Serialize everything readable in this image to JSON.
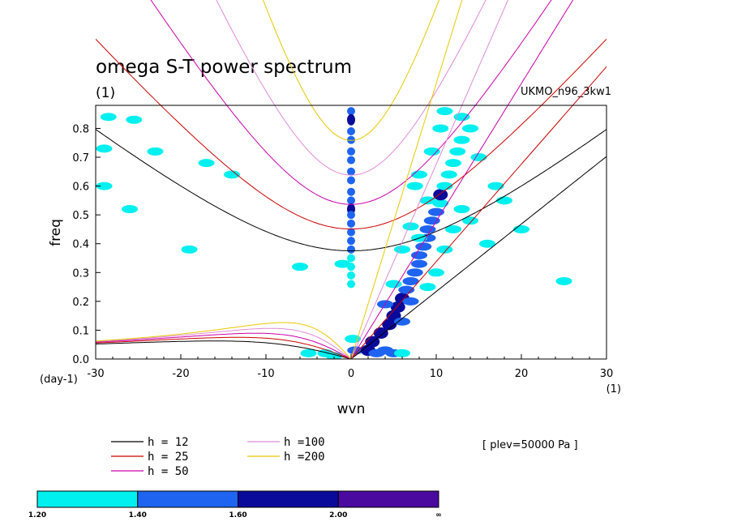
{
  "chart_data": {
    "type": "line",
    "title": "omega S-T power spectrum",
    "subtitle": "(1)",
    "run_label": "UKMO_n96_3kw1",
    "xlabel": "wvn",
    "ylabel": "freq",
    "x_unit_label": "(1)",
    "y_unit_label": "(day-1)",
    "xlim": [
      -30,
      30
    ],
    "ylim": [
      0,
      0.88
    ],
    "x_ticks": [
      -30,
      -20,
      -10,
      0,
      10,
      20,
      30
    ],
    "x_tick_labels": [
      "-30",
      "-20",
      "-10",
      "0",
      "10",
      "20",
      "30"
    ],
    "y_ticks": [
      0,
      0.1,
      0.2,
      0.3,
      0.4,
      0.5,
      0.6,
      0.7,
      0.8
    ],
    "y_tick_labels": [
      "0.0",
      "0.1",
      "0.2",
      "0.3",
      "0.4",
      "0.5",
      "0.6",
      "0.7",
      "0.8"
    ],
    "series": [
      {
        "name": "h = 12",
        "h": 12,
        "color": "#000000"
      },
      {
        "name": "h = 25",
        "h": 25,
        "color": "#cc0000"
      },
      {
        "name": "h = 50",
        "h": 50,
        "color": "#cc00aa"
      },
      {
        "name": "h =100",
        "h": 100,
        "color": "#e08ad8"
      },
      {
        "name": "h =200",
        "h": 200,
        "color": "#e8c800"
      }
    ],
    "annotation": "[ plev=50000 Pa ]",
    "colorbar": {
      "levels": [
        "1.20",
        "1.40",
        "1.60",
        "2.00",
        "∞"
      ],
      "colors": [
        "#00f0f0",
        "#1e64f0",
        "#0a0a9a",
        "#4a0aa0"
      ]
    },
    "power_blobs": [
      {
        "k": 0,
        "f": 0.86,
        "lvl": 1
      },
      {
        "k": 0,
        "f": 0.83,
        "lvl": 2
      },
      {
        "k": 0,
        "f": 0.79,
        "lvl": 1
      },
      {
        "k": 0,
        "f": 0.76,
        "lvl": 1
      },
      {
        "k": 0,
        "f": 0.72,
        "lvl": 1
      },
      {
        "k": 0,
        "f": 0.69,
        "lvl": 1
      },
      {
        "k": 0,
        "f": 0.65,
        "lvl": 1
      },
      {
        "k": 0,
        "f": 0.62,
        "lvl": 1
      },
      {
        "k": 0,
        "f": 0.58,
        "lvl": 1
      },
      {
        "k": 0,
        "f": 0.55,
        "lvl": 1
      },
      {
        "k": 0,
        "f": 0.52,
        "lvl": 2
      },
      {
        "k": 0,
        "f": 0.5,
        "lvl": 1
      },
      {
        "k": 0,
        "f": 0.47,
        "lvl": 1
      },
      {
        "k": 0,
        "f": 0.44,
        "lvl": 1
      },
      {
        "k": 0,
        "f": 0.41,
        "lvl": 1
      },
      {
        "k": 0,
        "f": 0.38,
        "lvl": 1
      },
      {
        "k": 0,
        "f": 0.35,
        "lvl": 0
      },
      {
        "k": 0,
        "f": 0.32,
        "lvl": 0
      },
      {
        "k": 0,
        "f": 0.29,
        "lvl": 0
      },
      {
        "k": 0,
        "f": 0.26,
        "lvl": 0
      },
      {
        "k": 0.2,
        "f": 0.07,
        "lvl": 0
      },
      {
        "k": 0.5,
        "f": 0.03,
        "lvl": 1
      },
      {
        "k": -3,
        "f": 0.02,
        "lvl": 0
      },
      {
        "k": -5,
        "f": 0.02,
        "lvl": 0
      },
      {
        "k": -2,
        "f": 0.01,
        "lvl": 0
      },
      {
        "k": 2,
        "f": 0.03,
        "lvl": 2
      },
      {
        "k": 3,
        "f": 0.02,
        "lvl": 1
      },
      {
        "k": 4,
        "f": 0.03,
        "lvl": 1
      },
      {
        "k": 5,
        "f": 0.02,
        "lvl": 1
      },
      {
        "k": 6,
        "f": 0.02,
        "lvl": 0
      },
      {
        "k": 2.5,
        "f": 0.06,
        "lvl": 2
      },
      {
        "k": 3.5,
        "f": 0.09,
        "lvl": 2
      },
      {
        "k": 4.5,
        "f": 0.12,
        "lvl": 2
      },
      {
        "k": 5,
        "f": 0.15,
        "lvl": 2
      },
      {
        "k": 5.5,
        "f": 0.18,
        "lvl": 2
      },
      {
        "k": 6,
        "f": 0.21,
        "lvl": 2
      },
      {
        "k": 6.5,
        "f": 0.24,
        "lvl": 1
      },
      {
        "k": 7,
        "f": 0.27,
        "lvl": 1
      },
      {
        "k": 7.5,
        "f": 0.3,
        "lvl": 1
      },
      {
        "k": 8,
        "f": 0.33,
        "lvl": 1
      },
      {
        "k": 8,
        "f": 0.36,
        "lvl": 1
      },
      {
        "k": 8.5,
        "f": 0.39,
        "lvl": 1
      },
      {
        "k": 9,
        "f": 0.42,
        "lvl": 1
      },
      {
        "k": 9,
        "f": 0.45,
        "lvl": 1
      },
      {
        "k": 9.5,
        "f": 0.48,
        "lvl": 1
      },
      {
        "k": 10,
        "f": 0.51,
        "lvl": 1
      },
      {
        "k": 10.5,
        "f": 0.54,
        "lvl": 0
      },
      {
        "k": 10.5,
        "f": 0.57,
        "lvl": 2
      },
      {
        "k": 11,
        "f": 0.6,
        "lvl": 0
      },
      {
        "k": 11.5,
        "f": 0.64,
        "lvl": 0
      },
      {
        "k": 12,
        "f": 0.68,
        "lvl": 0
      },
      {
        "k": 12.5,
        "f": 0.72,
        "lvl": 0
      },
      {
        "k": 13,
        "f": 0.76,
        "lvl": 0
      },
      {
        "k": 14,
        "f": 0.8,
        "lvl": 0
      },
      {
        "k": 13,
        "f": 0.84,
        "lvl": 0
      },
      {
        "k": 11,
        "f": 0.86,
        "lvl": 0
      },
      {
        "k": 6,
        "f": 0.13,
        "lvl": 1
      },
      {
        "k": 7,
        "f": 0.2,
        "lvl": 1
      },
      {
        "k": 9,
        "f": 0.25,
        "lvl": 0
      },
      {
        "k": 10,
        "f": 0.3,
        "lvl": 0
      },
      {
        "k": 11,
        "f": 0.38,
        "lvl": 0
      },
      {
        "k": 12,
        "f": 0.45,
        "lvl": 0
      },
      {
        "k": 8,
        "f": 0.42,
        "lvl": 0
      },
      {
        "k": 9,
        "f": 0.55,
        "lvl": 0
      },
      {
        "k": 6,
        "f": 0.38,
        "lvl": 0
      },
      {
        "k": 7,
        "f": 0.46,
        "lvl": 0
      },
      {
        "k": 7.5,
        "f": 0.6,
        "lvl": 0
      },
      {
        "k": 8,
        "f": 0.64,
        "lvl": 0
      },
      {
        "k": 9.5,
        "f": 0.72,
        "lvl": 0
      },
      {
        "k": 10.5,
        "f": 0.8,
        "lvl": 0
      },
      {
        "k": 15,
        "f": 0.7,
        "lvl": 0
      },
      {
        "k": 17,
        "f": 0.6,
        "lvl": 0
      },
      {
        "k": 18,
        "f": 0.55,
        "lvl": 0
      },
      {
        "k": 20,
        "f": 0.45,
        "lvl": 0
      },
      {
        "k": 14,
        "f": 0.48,
        "lvl": 0
      },
      {
        "k": 13,
        "f": 0.52,
        "lvl": 0
      },
      {
        "k": 16,
        "f": 0.4,
        "lvl": 0
      },
      {
        "k": 25,
        "f": 0.27,
        "lvl": 0
      },
      {
        "k": -29,
        "f": 0.73,
        "lvl": 0
      },
      {
        "k": -28.5,
        "f": 0.84,
        "lvl": 0
      },
      {
        "k": -25.5,
        "f": 0.83,
        "lvl": 0
      },
      {
        "k": -23,
        "f": 0.72,
        "lvl": 0
      },
      {
        "k": -29,
        "f": 0.6,
        "lvl": 0
      },
      {
        "k": -26,
        "f": 0.52,
        "lvl": 0
      },
      {
        "k": -17,
        "f": 0.68,
        "lvl": 0
      },
      {
        "k": -14,
        "f": 0.64,
        "lvl": 0
      },
      {
        "k": -19,
        "f": 0.38,
        "lvl": 0
      },
      {
        "k": -6,
        "f": 0.32,
        "lvl": 0
      },
      {
        "k": -1,
        "f": 0.33,
        "lvl": 0
      },
      {
        "k": 5,
        "f": 0.26,
        "lvl": 0
      },
      {
        "k": 4,
        "f": 0.19,
        "lvl": 1
      }
    ]
  }
}
